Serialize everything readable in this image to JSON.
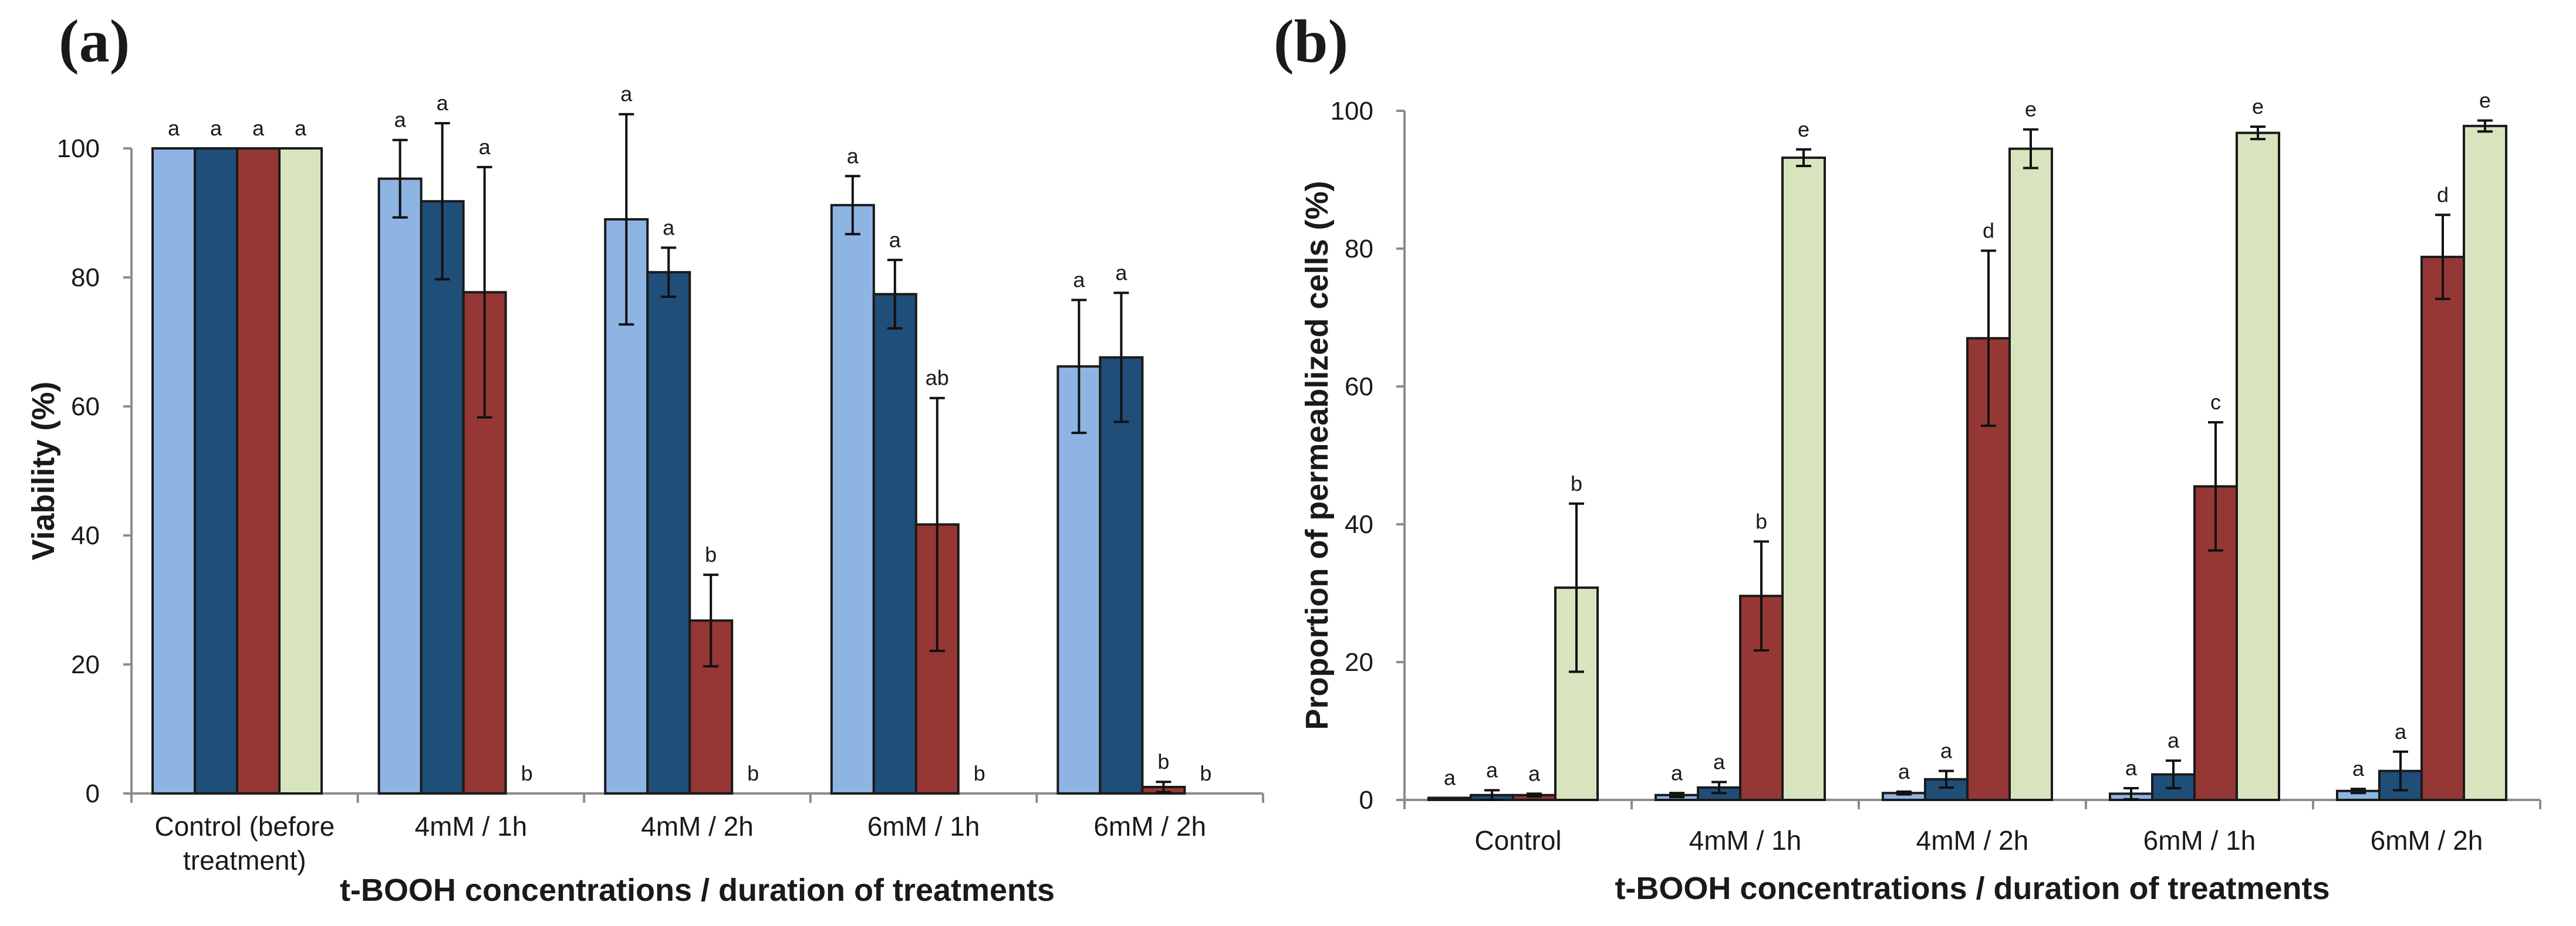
{
  "chart_data": [
    {
      "panel": "(a)",
      "type": "bar",
      "xlabel": "t-BOOH concentrations / duration of treatments",
      "ylabel": "Viability (%)",
      "ylim": [
        0,
        100
      ],
      "yticks": [
        "0",
        "20",
        "40",
        "60",
        "80",
        "100"
      ],
      "grid": false,
      "categories": [
        "Control (before treatment)",
        "4mM / 1h",
        "4mM / 2h",
        "6mM / 1h",
        "6mM / 2h"
      ],
      "category_lines": [
        [
          "Control (before",
          "treatment)"
        ],
        [
          "4mM / 1h"
        ],
        [
          "4mM / 2h"
        ],
        [
          "6mM / 1h"
        ],
        [
          "6mM / 2h"
        ]
      ],
      "series": [
        {
          "name": "series 1",
          "color": "#8eb4e3",
          "values": [
            100,
            95.3,
            89,
            91.2,
            66.2
          ],
          "errors": [
            0,
            6,
            16.3,
            4.5,
            10.3
          ],
          "letters": [
            "a",
            "a",
            "a",
            "a",
            "a"
          ]
        },
        {
          "name": "series 2",
          "color": "#1f4e79",
          "values": [
            100,
            91.8,
            80.8,
            77.4,
            67.6
          ],
          "errors": [
            0,
            12.1,
            3.8,
            5.3,
            10
          ],
          "letters": [
            "a",
            "a",
            "a",
            "a",
            "a"
          ]
        },
        {
          "name": "series 3",
          "color": "#953735",
          "values": [
            100,
            77.7,
            26.8,
            41.7,
            1
          ],
          "errors": [
            0,
            19.4,
            7.1,
            19.6,
            0.8
          ],
          "letters": [
            "a",
            "a",
            "b",
            "ab",
            "b"
          ]
        },
        {
          "name": "series 4",
          "color": "#d7e4bd",
          "values": [
            100,
            0,
            0,
            0,
            0
          ],
          "errors": [
            0,
            0,
            0,
            0,
            0
          ],
          "letters": [
            "a",
            "b",
            "b",
            "b",
            "b"
          ]
        }
      ]
    },
    {
      "panel": "(b)",
      "type": "bar",
      "xlabel": "t-BOOH concentrations / duration of treatments",
      "ylabel": "Proportion of permeablized cells (%)",
      "ylim": [
        0,
        100
      ],
      "yticks": [
        "0",
        "20",
        "40",
        "60",
        "80",
        "100"
      ],
      "grid": false,
      "categories": [
        "Control",
        "4mM / 1h",
        "4mM / 2h",
        "6mM / 1h",
        "6mM / 2h"
      ],
      "category_lines": [
        [
          "Control"
        ],
        [
          "4mM / 1h"
        ],
        [
          "4mM / 2h"
        ],
        [
          "6mM / 1h"
        ],
        [
          "6mM / 2h"
        ]
      ],
      "series": [
        {
          "name": "series 1",
          "color": "#8eb4e3",
          "values": [
            0.3,
            0.7,
            1,
            0.9,
            1.3
          ],
          "errors": [
            0,
            0.3,
            0.2,
            0.8,
            0.3
          ],
          "letters": [
            "a",
            "a",
            "a",
            "a",
            "a"
          ]
        },
        {
          "name": "series 2",
          "color": "#1f4e79",
          "values": [
            0.7,
            1.8,
            3,
            3.7,
            4.2
          ],
          "errors": [
            0.7,
            0.8,
            1.2,
            2,
            2.8
          ],
          "letters": [
            "a",
            "a",
            "a",
            "a",
            "a"
          ]
        },
        {
          "name": "series 3",
          "color": "#953735",
          "values": [
            0.7,
            29.6,
            67,
            45.5,
            78.8
          ],
          "errors": [
            0.2,
            7.9,
            12.7,
            9.3,
            6.1
          ],
          "letters": [
            "a",
            "b",
            "d",
            "c",
            "d"
          ]
        },
        {
          "name": "series 4",
          "color": "#d7e4bd",
          "values": [
            30.8,
            93.2,
            94.5,
            96.8,
            97.8
          ],
          "errors": [
            12.2,
            1.2,
            2.8,
            0.9,
            0.8
          ],
          "letters": [
            "b",
            "e",
            "e",
            "e",
            "e"
          ]
        }
      ]
    }
  ]
}
